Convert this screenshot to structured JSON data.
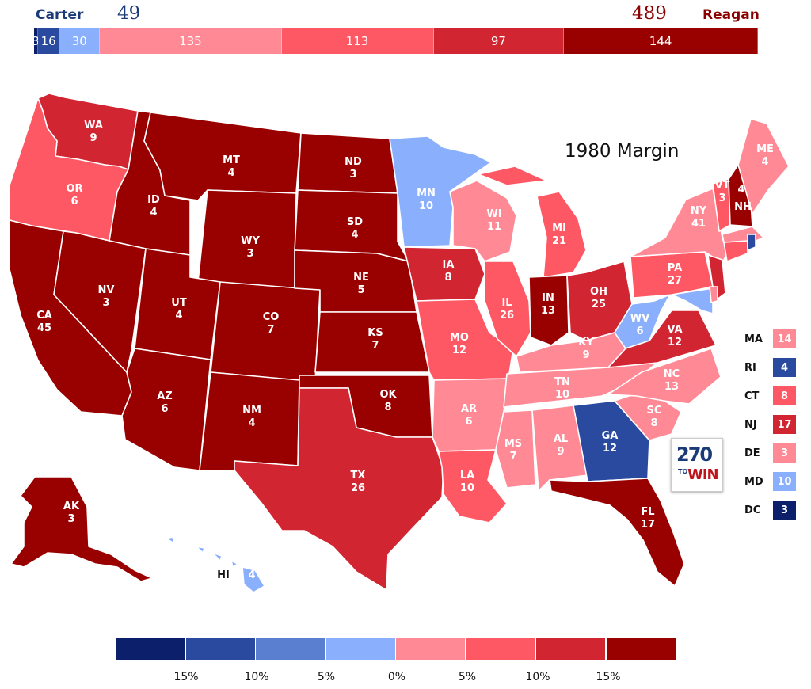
{
  "header": {
    "left_name": "Carter",
    "left_votes": "49",
    "right_name": "Reagan",
    "right_votes": "489",
    "bar": [
      {
        "label": "3",
        "value": 3,
        "color": "#0b1f6b"
      },
      {
        "label": "16",
        "value": 16,
        "color": "#2a4aa0"
      },
      {
        "label": "30",
        "value": 30,
        "color": "#8aaffc"
      },
      {
        "label": "135",
        "value": 135,
        "color": "#ff8a96"
      },
      {
        "label": "113",
        "value": 113,
        "color": "#ff5865"
      },
      {
        "label": "97",
        "value": 97,
        "color": "#d22532"
      },
      {
        "label": "144",
        "value": 144,
        "color": "#990000"
      }
    ]
  },
  "map": {
    "title": "1980 Margin",
    "states": [
      {
        "abbr": "WA",
        "votes": "9",
        "color": "#d22532"
      },
      {
        "abbr": "OR",
        "votes": "6",
        "color": "#ff5865"
      },
      {
        "abbr": "CA",
        "votes": "45",
        "color": "#990000"
      },
      {
        "abbr": "ID",
        "votes": "4",
        "color": "#990000"
      },
      {
        "abbr": "NV",
        "votes": "3",
        "color": "#990000"
      },
      {
        "abbr": "MT",
        "votes": "4",
        "color": "#990000"
      },
      {
        "abbr": "WY",
        "votes": "3",
        "color": "#990000"
      },
      {
        "abbr": "UT",
        "votes": "4",
        "color": "#990000"
      },
      {
        "abbr": "AZ",
        "votes": "6",
        "color": "#990000"
      },
      {
        "abbr": "CO",
        "votes": "7",
        "color": "#990000"
      },
      {
        "abbr": "NM",
        "votes": "4",
        "color": "#990000"
      },
      {
        "abbr": "ND",
        "votes": "3",
        "color": "#990000"
      },
      {
        "abbr": "SD",
        "votes": "4",
        "color": "#990000"
      },
      {
        "abbr": "NE",
        "votes": "5",
        "color": "#990000"
      },
      {
        "abbr": "KS",
        "votes": "7",
        "color": "#990000"
      },
      {
        "abbr": "OK",
        "votes": "8",
        "color": "#990000"
      },
      {
        "abbr": "TX",
        "votes": "26",
        "color": "#d22532"
      },
      {
        "abbr": "MN",
        "votes": "10",
        "color": "#8aaffc"
      },
      {
        "abbr": "IA",
        "votes": "8",
        "color": "#d22532"
      },
      {
        "abbr": "MO",
        "votes": "12",
        "color": "#ff5865"
      },
      {
        "abbr": "AR",
        "votes": "6",
        "color": "#ff8a96"
      },
      {
        "abbr": "LA",
        "votes": "10",
        "color": "#ff5865"
      },
      {
        "abbr": "WI",
        "votes": "11",
        "color": "#ff8a96"
      },
      {
        "abbr": "IL",
        "votes": "26",
        "color": "#ff5865"
      },
      {
        "abbr": "MI",
        "votes": "21",
        "color": "#ff5865"
      },
      {
        "abbr": "IN",
        "votes": "13",
        "color": "#990000"
      },
      {
        "abbr": "OH",
        "votes": "25",
        "color": "#d22532"
      },
      {
        "abbr": "KY",
        "votes": "9",
        "color": "#ff8a96"
      },
      {
        "abbr": "TN",
        "votes": "10",
        "color": "#ff8a96"
      },
      {
        "abbr": "MS",
        "votes": "7",
        "color": "#ff8a96"
      },
      {
        "abbr": "AL",
        "votes": "9",
        "color": "#ff8a96"
      },
      {
        "abbr": "GA",
        "votes": "12",
        "color": "#2a4aa0"
      },
      {
        "abbr": "FL",
        "votes": "17",
        "color": "#990000"
      },
      {
        "abbr": "SC",
        "votes": "8",
        "color": "#ff8a96"
      },
      {
        "abbr": "NC",
        "votes": "13",
        "color": "#ff8a96"
      },
      {
        "abbr": "VA",
        "votes": "12",
        "color": "#d22532"
      },
      {
        "abbr": "WV",
        "votes": "6",
        "color": "#8aaffc"
      },
      {
        "abbr": "PA",
        "votes": "27",
        "color": "#ff5865"
      },
      {
        "abbr": "NY",
        "votes": "41",
        "color": "#ff8a96"
      },
      {
        "abbr": "VT",
        "votes": "3",
        "color": "#ff5865"
      },
      {
        "abbr": "NH",
        "votes": "4",
        "color": "#990000"
      },
      {
        "abbr": "ME",
        "votes": "4",
        "color": "#ff8a96"
      },
      {
        "abbr": "AK",
        "votes": "3",
        "color": "#990000"
      },
      {
        "abbr": "HI",
        "votes": "4",
        "color": "#8aaffc"
      }
    ],
    "small_states": [
      {
        "abbr": "MA",
        "votes": "14",
        "color": "#ff8a96"
      },
      {
        "abbr": "RI",
        "votes": "4",
        "color": "#2a4aa0"
      },
      {
        "abbr": "CT",
        "votes": "8",
        "color": "#ff5865"
      },
      {
        "abbr": "NJ",
        "votes": "17",
        "color": "#d22532"
      },
      {
        "abbr": "DE",
        "votes": "3",
        "color": "#ff8a96"
      },
      {
        "abbr": "MD",
        "votes": "10",
        "color": "#8aaffc"
      },
      {
        "abbr": "DC",
        "votes": "3",
        "color": "#0b1f6b"
      }
    ]
  },
  "logo": {
    "top": "270",
    "to": "TO",
    "win": "WIN"
  },
  "scale": {
    "colors": [
      "#0b1f6b",
      "#2a4aa0",
      "#5a7ed0",
      "#8aaffc",
      "#ff8a96",
      "#ff5865",
      "#d22532",
      "#990000"
    ],
    "ticks": [
      "15%",
      "10%",
      "5%",
      "0%",
      "5%",
      "10%",
      "15%"
    ]
  }
}
